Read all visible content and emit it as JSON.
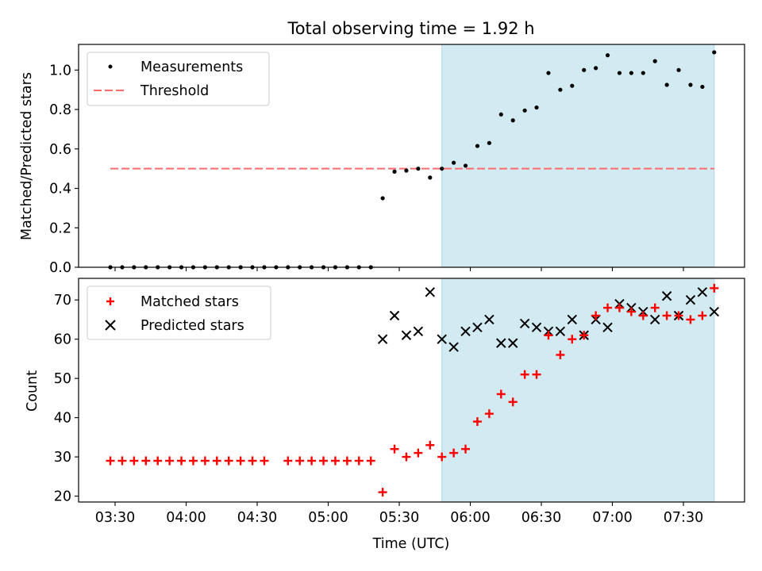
{
  "colors": {
    "span": "#add8e6",
    "threshold": "#ff6b6b",
    "matched": "#ff0000",
    "predicted": "#000000",
    "measurement": "#000000"
  },
  "chart_data": [
    {
      "type": "scatter",
      "title": "Total observing time = 1.92 h",
      "xlabel": "",
      "ylabel": "Matched/Predicted stars",
      "ylim": [
        0,
        1.13
      ],
      "yticks": [
        0.0,
        0.2,
        0.4,
        0.6,
        0.8,
        1.0
      ],
      "ytick_labels": [
        "0.0",
        "0.2",
        "0.4",
        "0.6",
        "0.8",
        "1.0"
      ],
      "shaded_span": [
        "05:48",
        "07:43"
      ],
      "legend": {
        "position": "top-left",
        "entries": [
          "Measurements",
          "Threshold"
        ]
      },
      "series": [
        {
          "name": "Measurements",
          "marker": "dot",
          "x": [
            "03:28",
            "03:33",
            "03:38",
            "03:43",
            "03:48",
            "03:53",
            "03:58",
            "04:03",
            "04:08",
            "04:13",
            "04:18",
            "04:23",
            "04:28",
            "04:33",
            "04:38",
            "04:43",
            "04:48",
            "04:53",
            "04:58",
            "05:03",
            "05:08",
            "05:13",
            "05:18",
            "05:23",
            "05:28",
            "05:33",
            "05:38",
            "05:43",
            "05:48",
            "05:53",
            "05:58",
            "06:03",
            "06:08",
            "06:13",
            "06:18",
            "06:23",
            "06:28",
            "06:33",
            "06:38",
            "06:43",
            "06:48",
            "06:53",
            "06:58",
            "07:03",
            "07:08",
            "07:13",
            "07:18",
            "07:23",
            "07:28",
            "07:33",
            "07:38",
            "07:43"
          ],
          "y": [
            0,
            0,
            0,
            0,
            0,
            0,
            0,
            0,
            0,
            0,
            0,
            0,
            0,
            0,
            0,
            0,
            0,
            0,
            0,
            0,
            0,
            0,
            0,
            0.35,
            0.485,
            0.49,
            0.5,
            0.455,
            0.5,
            0.53,
            0.515,
            0.615,
            0.63,
            0.775,
            0.745,
            0.795,
            0.81,
            0.985,
            0.9,
            0.92,
            1.0,
            1.01,
            1.075,
            0.985,
            0.985,
            0.985,
            1.045,
            0.925,
            1.0,
            0.925,
            0.915,
            1.09
          ]
        },
        {
          "name": "Threshold",
          "type": "line",
          "style": "dashed",
          "x": [
            "03:28",
            "07:43"
          ],
          "y": [
            0.5,
            0.5
          ]
        }
      ]
    },
    {
      "type": "scatter",
      "title": "",
      "xlabel": "Time (UTC)",
      "ylabel": "Count",
      "ylim": [
        18.5,
        75.5
      ],
      "yticks": [
        20,
        30,
        40,
        50,
        60,
        70
      ],
      "ytick_labels": [
        "20",
        "30",
        "40",
        "50",
        "60",
        "70"
      ],
      "xticks": [
        "03:30",
        "04:00",
        "04:30",
        "05:00",
        "05:30",
        "06:00",
        "06:30",
        "07:00",
        "07:30"
      ],
      "shaded_span": [
        "05:48",
        "07:43"
      ],
      "legend": {
        "position": "top-left",
        "entries": [
          "Matched stars",
          "Predicted stars"
        ]
      },
      "series": [
        {
          "name": "Matched stars",
          "marker": "plus",
          "x": [
            "03:28",
            "03:33",
            "03:38",
            "03:43",
            "03:48",
            "03:53",
            "03:58",
            "04:03",
            "04:08",
            "04:13",
            "04:18",
            "04:23",
            "04:28",
            "04:33",
            "04:43",
            "04:48",
            "04:53",
            "04:58",
            "05:03",
            "05:08",
            "05:13",
            "05:18",
            "05:23",
            "05:28",
            "05:33",
            "05:38",
            "05:43",
            "05:48",
            "05:53",
            "05:58",
            "06:03",
            "06:08",
            "06:13",
            "06:18",
            "06:23",
            "06:28",
            "06:33",
            "06:38",
            "06:43",
            "06:48",
            "06:53",
            "06:58",
            "07:03",
            "07:08",
            "07:13",
            "07:18",
            "07:23",
            "07:28",
            "07:33",
            "07:38",
            "07:43"
          ],
          "y": [
            29,
            29,
            29,
            29,
            29,
            29,
            29,
            29,
            29,
            29,
            29,
            29,
            29,
            29,
            29,
            29,
            29,
            29,
            29,
            29,
            29,
            29,
            21,
            32,
            30,
            31,
            33,
            30,
            31,
            32,
            39,
            41,
            46,
            44,
            51,
            51,
            61,
            56,
            60,
            61,
            66,
            68,
            68,
            67,
            66,
            68,
            66,
            66,
            65,
            66,
            73
          ]
        },
        {
          "name": "Predicted stars",
          "marker": "x",
          "x": [
            "05:23",
            "05:28",
            "05:33",
            "05:38",
            "05:43",
            "05:48",
            "05:53",
            "05:58",
            "06:03",
            "06:08",
            "06:13",
            "06:18",
            "06:23",
            "06:28",
            "06:33",
            "06:38",
            "06:43",
            "06:48",
            "06:53",
            "06:58",
            "07:03",
            "07:08",
            "07:13",
            "07:18",
            "07:23",
            "07:28",
            "07:33",
            "07:38",
            "07:43"
          ],
          "y": [
            60,
            66,
            61,
            62,
            72,
            60,
            58,
            62,
            63,
            65,
            59,
            59,
            64,
            63,
            62,
            62,
            65,
            61,
            65,
            63,
            69,
            68,
            67,
            65,
            71,
            66,
            70,
            72,
            67
          ]
        }
      ]
    }
  ]
}
